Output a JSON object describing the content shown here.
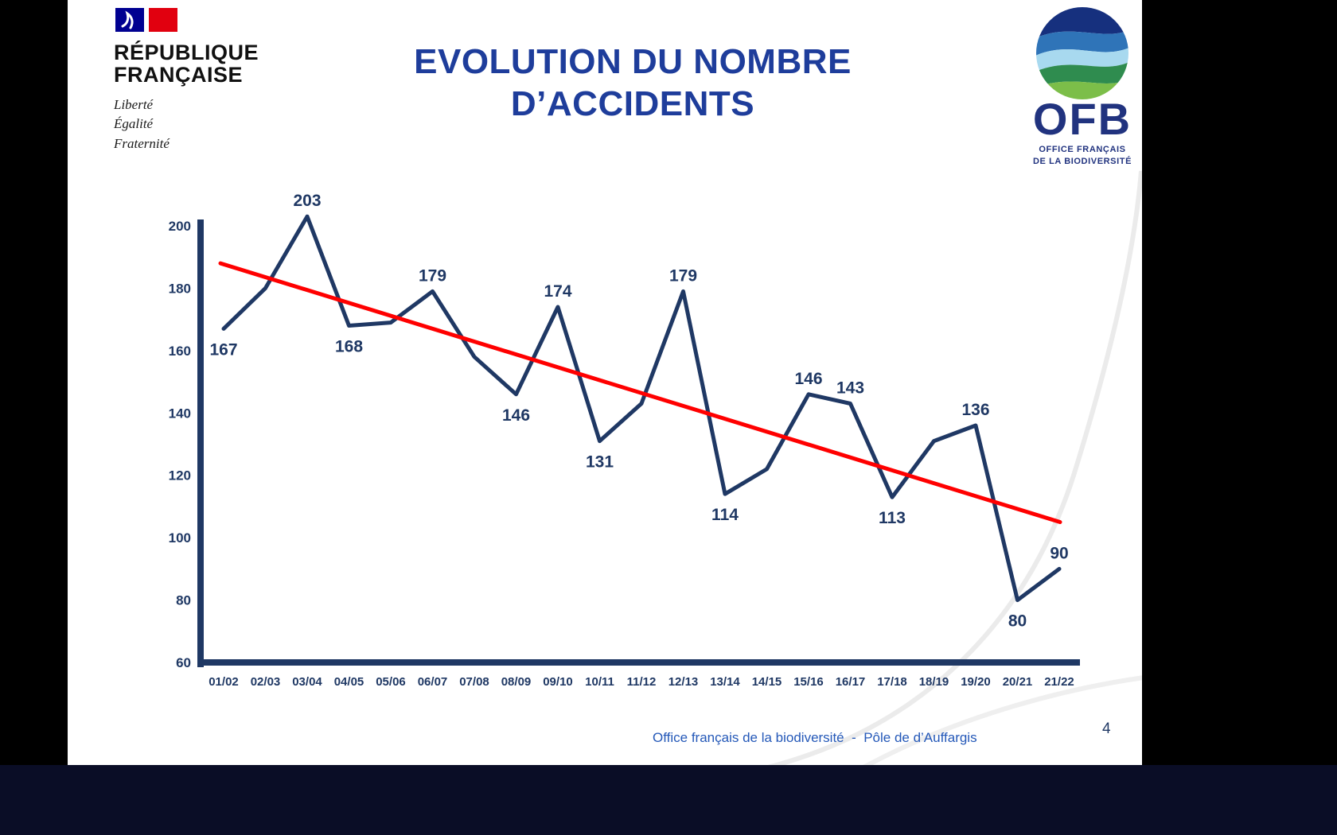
{
  "header": {
    "marianne": {
      "republique": "RÉPUBLIQUE",
      "francaise": "FRANÇAISE",
      "motto": [
        "Liberté",
        "Égalité",
        "Fraternité"
      ]
    },
    "title_line1": "EVOLUTION DU NOMBRE",
    "title_line2": "D’ACCIDENTS",
    "ofb": {
      "acronym": "OFB",
      "subtitle_line1": "OFFICE FRANÇAIS",
      "subtitle_line2": "DE LA BIODIVERSITÉ"
    }
  },
  "footer": {
    "text": "Office français de la biodiversité  -  Pôle de d’Auffargis",
    "page_number": "4"
  },
  "chart_data": {
    "type": "line",
    "title": "EVOLUTION DU NOMBRE D’ACCIDENTS",
    "xlabel": "",
    "ylabel": "",
    "categories": [
      "01/02",
      "02/03",
      "03/04",
      "04/05",
      "05/06",
      "06/07",
      "07/08",
      "08/09",
      "09/10",
      "10/11",
      "11/12",
      "12/13",
      "13/14",
      "14/15",
      "15/16",
      "16/17",
      "17/18",
      "18/19",
      "19/20",
      "20/21",
      "21/22"
    ],
    "values": [
      167,
      180,
      203,
      168,
      169,
      179,
      158,
      146,
      174,
      131,
      143,
      179,
      114,
      122,
      146,
      143,
      113,
      131,
      136,
      80,
      90
    ],
    "labels": [
      167,
      null,
      203,
      168,
      null,
      179,
      null,
      146,
      174,
      131,
      null,
      179,
      114,
      null,
      146,
      143,
      113,
      null,
      136,
      80,
      90
    ],
    "label_positions": [
      "below",
      null,
      "above",
      "below",
      null,
      "above",
      null,
      "below",
      "above",
      "below",
      null,
      "above",
      "below",
      null,
      "above",
      "above",
      "below",
      null,
      "above",
      "below",
      "above"
    ],
    "y_ticks": [
      200,
      180,
      160,
      140,
      120,
      100,
      80,
      60
    ],
    "ylim": [
      60,
      210
    ],
    "grid": false,
    "legend": false,
    "line_color": "#1F3864",
    "trendline": {
      "color": "#FF0000",
      "start_value": 188,
      "end_value": 105
    }
  }
}
